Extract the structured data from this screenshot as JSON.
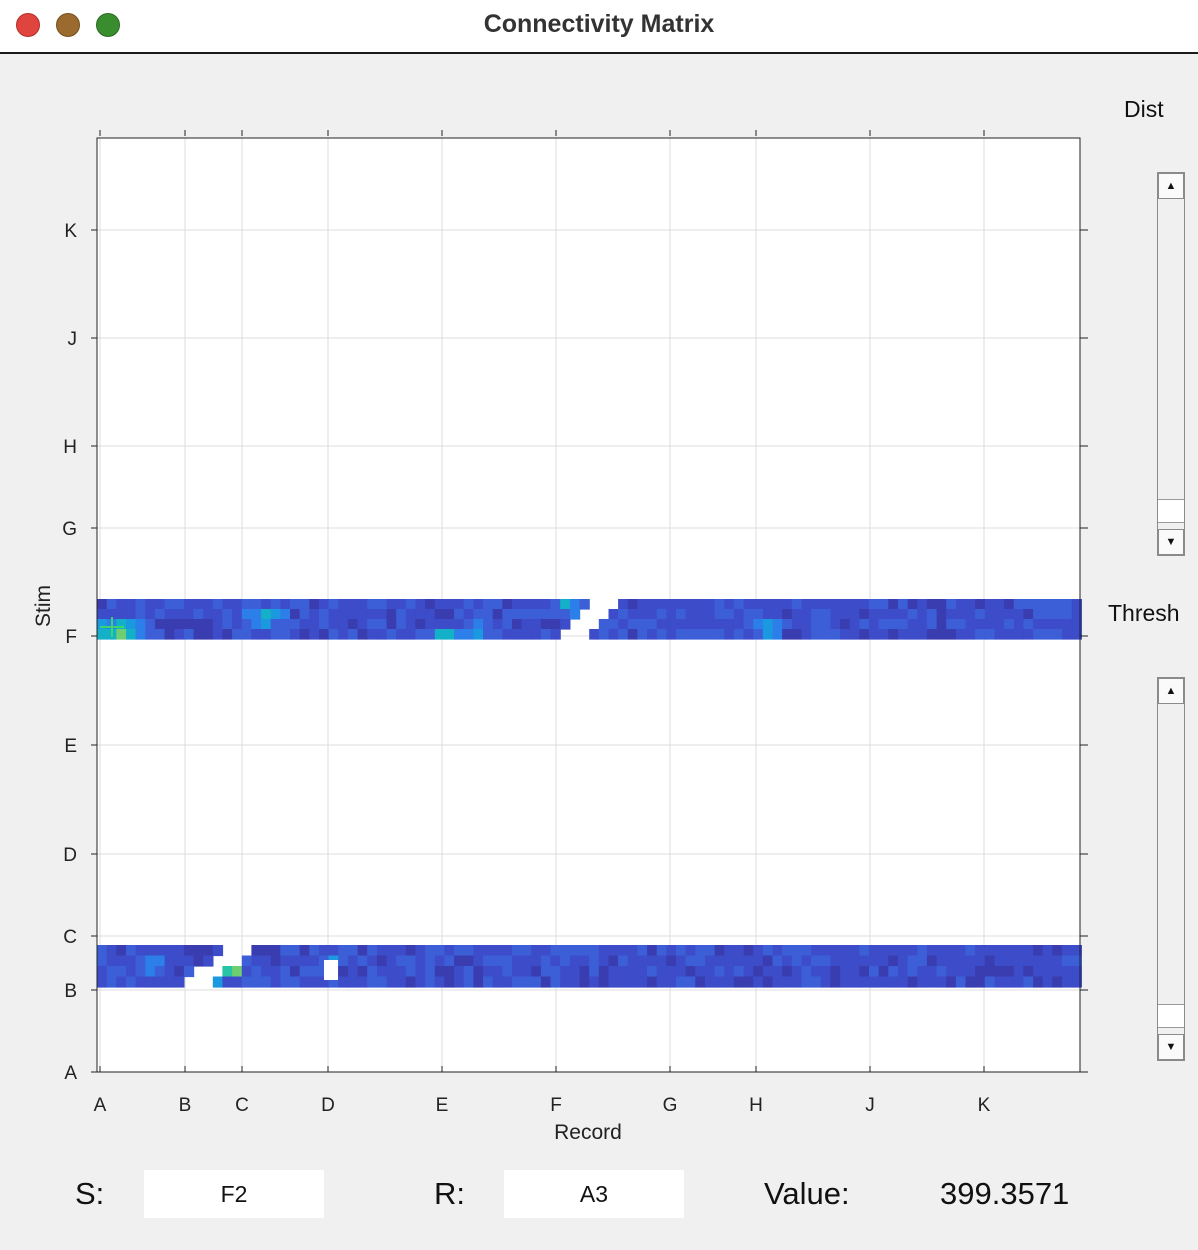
{
  "window": {
    "title": "Connectivity Matrix"
  },
  "chart_data": {
    "type": "heatmap",
    "xlabel": "Record",
    "ylabel": "Stim",
    "x_ticks": [
      "A",
      "B",
      "C",
      "D",
      "E",
      "F",
      "G",
      "H",
      "J",
      "K"
    ],
    "y_ticks": [
      "A",
      "B",
      "C",
      "D",
      "E",
      "F",
      "G",
      "H",
      "J",
      "K"
    ],
    "grid": true,
    "bands": [
      {
        "stim": "F",
        "description_rows": 4
      },
      {
        "stim": "B",
        "description_rows": 4
      }
    ],
    "selected_cell": {
      "stim": "F2",
      "record": "A3"
    },
    "colormap": "parula"
  },
  "controls": {
    "dist_label": "Dist",
    "thresh_label": "Thresh"
  },
  "status": {
    "s_label": "S:",
    "s_value": "F2",
    "r_label": "R:",
    "r_value": "A3",
    "value_label": "Value:",
    "value": "399.3571"
  },
  "icons": [
    "scroll-up-arrow-icon",
    "scroll-down-arrow-icon",
    "crosshair-marker-icon"
  ]
}
